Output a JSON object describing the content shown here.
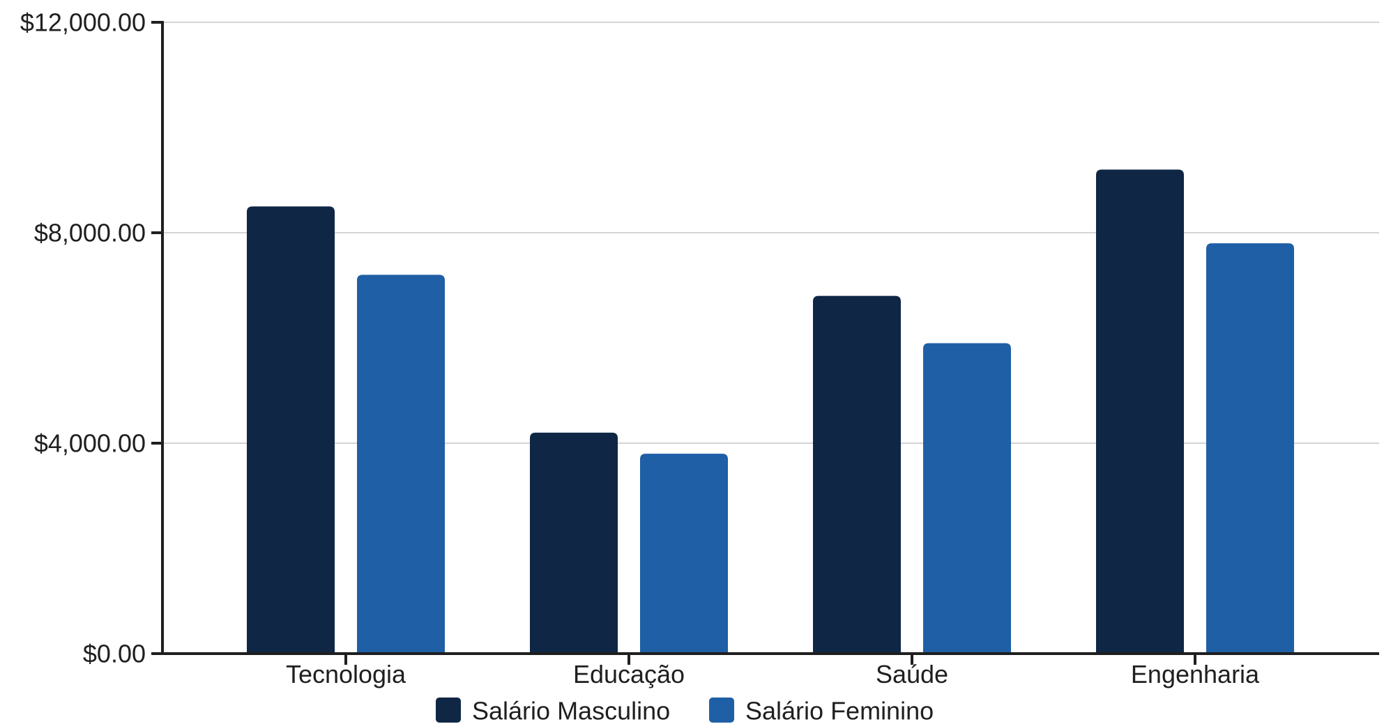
{
  "chart_data": {
    "type": "bar",
    "categories": [
      "Tecnologia",
      "Educação",
      "Saúde",
      "Engenharia"
    ],
    "series": [
      {
        "name": "Salário Masculino",
        "color": "#0f2744",
        "values": [
          8500,
          4200,
          6800,
          9200
        ]
      },
      {
        "name": "Salário Feminino",
        "color": "#1f5fa6",
        "values": [
          7200,
          3800,
          5900,
          7800
        ]
      }
    ],
    "ylim": [
      0,
      12000
    ],
    "yticks": [
      {
        "value": 0,
        "label": "$0.00"
      },
      {
        "value": 4000,
        "label": "$4,000.00"
      },
      {
        "value": 8000,
        "label": "$8,000.00"
      },
      {
        "value": 12000,
        "label": "$12,000.00"
      }
    ],
    "grid": "horizontal",
    "legend_position": "bottom-center",
    "title": "",
    "xlabel": "",
    "ylabel": ""
  }
}
